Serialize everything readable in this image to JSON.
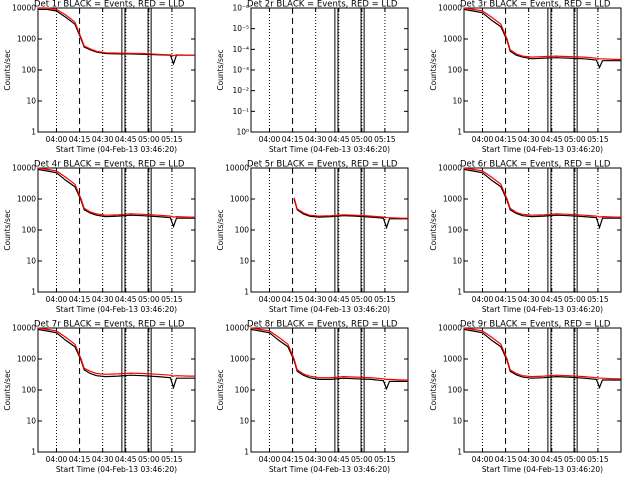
{
  "panel_common": {
    "title_suffix": "BLACK = Events, RED = LLD",
    "xlabel": "Start Time (04-Feb-13 03:46:20)",
    "ylabel": "Counts/sec",
    "x_ticks": [
      "04:00",
      "04:15",
      "04:30",
      "04:45",
      "05:00",
      "05:15"
    ]
  },
  "chart_data": [
    {
      "type": "line",
      "title_prefix": "Det 1r",
      "xlim": [
        -12,
        90
      ],
      "ylim": [
        1,
        10000
      ],
      "yscale": "log",
      "y_ticks": [
        "10000",
        "1000",
        "100",
        "10",
        "1"
      ],
      "series": [
        {
          "color": "#000000",
          "x": [
            -12,
            -6,
            0,
            6,
            12,
            16,
            18,
            22,
            26,
            32,
            40,
            48,
            56,
            66,
            74,
            76,
            78,
            86,
            90
          ],
          "y": [
            9000,
            9000,
            8000,
            5000,
            3000,
            1000,
            550,
            450,
            380,
            340,
            330,
            330,
            320,
            310,
            300,
            160,
            300,
            300,
            300
          ]
        },
        {
          "color": "#ff0000",
          "x": [
            -12,
            -6,
            0,
            6,
            12,
            16,
            18,
            22,
            26,
            32,
            40,
            48,
            56,
            66,
            74,
            76,
            78,
            86,
            90
          ],
          "y": [
            10000,
            10000,
            9000,
            6000,
            3500,
            1100,
            600,
            480,
            400,
            360,
            350,
            345,
            340,
            320,
            310,
            290,
            310,
            300,
            300
          ]
        }
      ]
    },
    {
      "type": "line",
      "title_prefix": "Det 2r",
      "xlim": [
        -12,
        90
      ],
      "ylim": [
        1,
        1e-06
      ],
      "yscale": "log",
      "y_ticks": [
        "10⁻⁶",
        "10⁻⁵",
        "10⁻⁴",
        "10⁻³",
        "10⁻²",
        "10⁻¹",
        "10⁰"
      ],
      "series": []
    },
    {
      "type": "line",
      "title_prefix": "Det 3r",
      "xlim": [
        -12,
        90
      ],
      "ylim": [
        1,
        10000
      ],
      "yscale": "log",
      "y_ticks": [
        "10000",
        "1000",
        "100",
        "10",
        "1"
      ],
      "series": [
        {
          "color": "#000000",
          "x": [
            -12,
            -6,
            0,
            6,
            12,
            16,
            18,
            22,
            26,
            32,
            40,
            48,
            56,
            66,
            74,
            76,
            78,
            86,
            90
          ],
          "y": [
            9000,
            8000,
            7000,
            4000,
            2500,
            900,
            400,
            300,
            260,
            230,
            240,
            250,
            240,
            230,
            210,
            120,
            200,
            200,
            200
          ]
        },
        {
          "color": "#ff0000",
          "x": [
            -12,
            -6,
            0,
            6,
            12,
            16,
            18,
            22,
            26,
            32,
            40,
            48,
            56,
            66,
            74,
            76,
            78,
            86,
            90
          ],
          "y": [
            10000,
            9000,
            8000,
            5000,
            3000,
            1000,
            450,
            330,
            280,
            260,
            270,
            280,
            270,
            260,
            240,
            230,
            230,
            220,
            220
          ]
        }
      ]
    },
    {
      "type": "line",
      "title_prefix": "Det 4r",
      "xlim": [
        -12,
        90
      ],
      "ylim": [
        1,
        10000
      ],
      "yscale": "log",
      "y_ticks": [
        "10000",
        "1000",
        "100",
        "10",
        "1"
      ],
      "series": [
        {
          "color": "#000000",
          "x": [
            -12,
            -6,
            0,
            6,
            12,
            16,
            18,
            22,
            26,
            32,
            40,
            48,
            56,
            66,
            74,
            76,
            78,
            86,
            90
          ],
          "y": [
            9000,
            8000,
            7000,
            4000,
            2500,
            900,
            450,
            350,
            300,
            270,
            280,
            300,
            290,
            270,
            250,
            130,
            240,
            240,
            240
          ]
        },
        {
          "color": "#ff0000",
          "x": [
            -12,
            -6,
            0,
            6,
            12,
            16,
            18,
            22,
            26,
            32,
            40,
            48,
            56,
            66,
            74,
            76,
            78,
            86,
            90
          ],
          "y": [
            10000,
            9000,
            8000,
            5000,
            3000,
            1000,
            500,
            380,
            330,
            300,
            310,
            330,
            320,
            300,
            280,
            260,
            270,
            260,
            260
          ]
        }
      ]
    },
    {
      "type": "line",
      "title_prefix": "Det 5r",
      "xlim": [
        -12,
        90
      ],
      "ylim": [
        1,
        10000
      ],
      "yscale": "log",
      "y_ticks": [
        "10000",
        "1000",
        "100",
        "10",
        "1"
      ],
      "series": [
        {
          "color": "#000000",
          "x": [
            16,
            18,
            22,
            26,
            32,
            40,
            48,
            56,
            66,
            74,
            76,
            78,
            86,
            90
          ],
          "y": [
            1000,
            450,
            330,
            280,
            260,
            270,
            290,
            280,
            260,
            240,
            120,
            230,
            230,
            230
          ]
        },
        {
          "color": "#ff0000",
          "x": [
            16,
            18,
            22,
            26,
            32,
            40,
            48,
            56,
            66,
            74,
            76,
            78,
            86,
            90
          ],
          "y": [
            1100,
            480,
            360,
            300,
            280,
            290,
            310,
            300,
            280,
            260,
            250,
            250,
            240,
            240
          ]
        }
      ]
    },
    {
      "type": "line",
      "title_prefix": "Det 6r",
      "xlim": [
        -12,
        90
      ],
      "ylim": [
        1,
        10000
      ],
      "yscale": "log",
      "y_ticks": [
        "10000",
        "1000",
        "100",
        "10",
        "1"
      ],
      "series": [
        {
          "color": "#000000",
          "x": [
            -12,
            -6,
            0,
            6,
            12,
            16,
            18,
            22,
            26,
            32,
            40,
            48,
            56,
            66,
            74,
            76,
            78,
            86,
            90
          ],
          "y": [
            9000,
            8000,
            7000,
            4000,
            2500,
            900,
            450,
            340,
            290,
            270,
            280,
            300,
            290,
            270,
            250,
            120,
            240,
            240,
            240
          ]
        },
        {
          "color": "#ff0000",
          "x": [
            -12,
            -6,
            0,
            6,
            12,
            16,
            18,
            22,
            26,
            32,
            40,
            48,
            56,
            66,
            74,
            76,
            78,
            86,
            90
          ],
          "y": [
            10000,
            9000,
            8000,
            5000,
            3000,
            1000,
            500,
            370,
            320,
            300,
            310,
            330,
            320,
            300,
            280,
            260,
            270,
            260,
            260
          ]
        }
      ]
    },
    {
      "type": "line",
      "title_prefix": "Det 7r",
      "xlim": [
        -12,
        90
      ],
      "ylim": [
        1,
        10000
      ],
      "yscale": "log",
      "y_ticks": [
        "10000",
        "1000",
        "100",
        "10",
        "1"
      ],
      "series": [
        {
          "color": "#000000",
          "x": [
            -12,
            -6,
            0,
            6,
            12,
            16,
            18,
            22,
            26,
            32,
            40,
            48,
            56,
            66,
            74,
            76,
            78,
            86,
            90
          ],
          "y": [
            9000,
            8000,
            7000,
            4000,
            2500,
            900,
            450,
            340,
            290,
            270,
            280,
            300,
            290,
            270,
            250,
            120,
            240,
            240,
            240
          ]
        },
        {
          "color": "#ff0000",
          "x": [
            -12,
            -6,
            0,
            6,
            12,
            16,
            18,
            22,
            26,
            32,
            40,
            48,
            56,
            66,
            74,
            76,
            78,
            86,
            90
          ],
          "y": [
            10000,
            9000,
            8000,
            5000,
            3000,
            1000,
            500,
            400,
            340,
            320,
            330,
            350,
            340,
            320,
            300,
            280,
            290,
            280,
            280
          ]
        }
      ]
    },
    {
      "type": "line",
      "title_prefix": "Det 8r",
      "xlim": [
        -12,
        90
      ],
      "ylim": [
        1,
        10000
      ],
      "yscale": "log",
      "y_ticks": [
        "10000",
        "1000",
        "100",
        "10",
        "1"
      ],
      "series": [
        {
          "color": "#000000",
          "x": [
            -12,
            -6,
            0,
            6,
            12,
            16,
            18,
            22,
            26,
            32,
            40,
            48,
            56,
            66,
            74,
            76,
            78,
            86,
            90
          ],
          "y": [
            9000,
            8000,
            7000,
            4000,
            2500,
            900,
            400,
            300,
            250,
            220,
            220,
            240,
            230,
            220,
            200,
            110,
            190,
            190,
            190
          ]
        },
        {
          "color": "#ff0000",
          "x": [
            -12,
            -6,
            0,
            6,
            12,
            16,
            18,
            22,
            26,
            32,
            40,
            48,
            56,
            66,
            74,
            76,
            78,
            86,
            90
          ],
          "y": [
            10000,
            9000,
            8000,
            5000,
            3000,
            1000,
            450,
            330,
            280,
            250,
            250,
            270,
            260,
            250,
            230,
            220,
            220,
            210,
            210
          ]
        }
      ]
    },
    {
      "type": "line",
      "title_prefix": "Det 9r",
      "xlim": [
        -12,
        90
      ],
      "ylim": [
        1,
        10000
      ],
      "yscale": "log",
      "y_ticks": [
        "10000",
        "1000",
        "100",
        "10",
        "1"
      ],
      "series": [
        {
          "color": "#000000",
          "x": [
            -12,
            -6,
            0,
            6,
            12,
            16,
            18,
            22,
            26,
            32,
            40,
            48,
            56,
            66,
            74,
            76,
            78,
            86,
            90
          ],
          "y": [
            9000,
            8000,
            7000,
            4000,
            2500,
            900,
            400,
            310,
            260,
            240,
            250,
            270,
            260,
            240,
            220,
            120,
            210,
            210,
            210
          ]
        },
        {
          "color": "#ff0000",
          "x": [
            -12,
            -6,
            0,
            6,
            12,
            16,
            18,
            22,
            26,
            32,
            40,
            48,
            56,
            66,
            74,
            76,
            78,
            86,
            90
          ],
          "y": [
            10000,
            9000,
            8000,
            5000,
            3000,
            1000,
            450,
            340,
            290,
            270,
            280,
            300,
            290,
            270,
            250,
            240,
            240,
            230,
            230
          ]
        }
      ]
    }
  ]
}
